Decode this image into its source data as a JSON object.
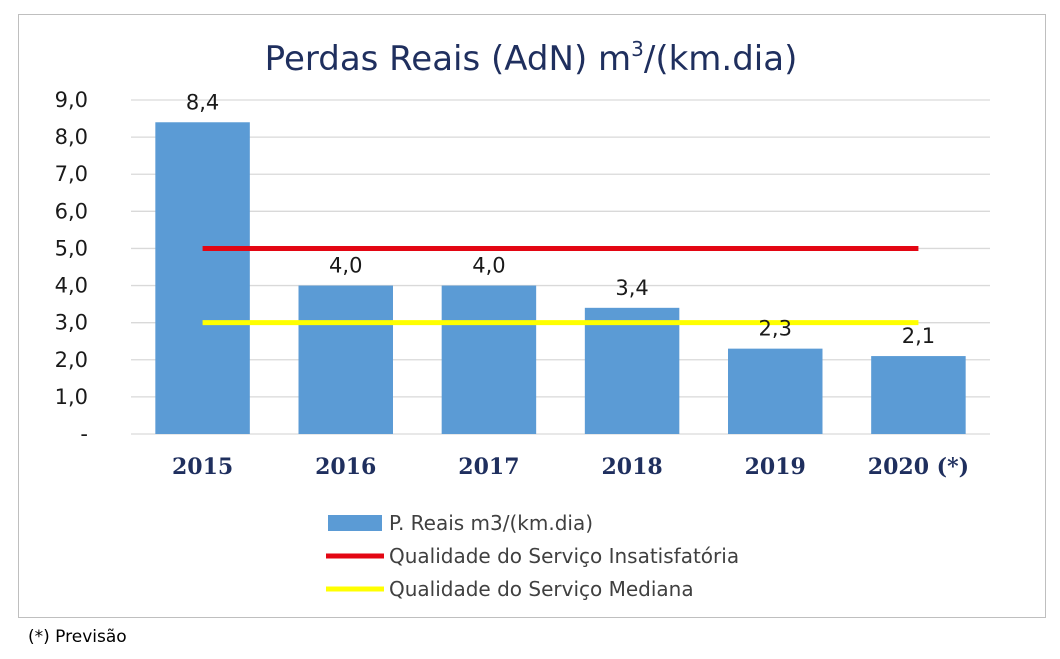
{
  "footnote": "(*) Previsão",
  "chart_data": {
    "type": "bar",
    "title": "Perdas Reais (AdN) m3/(km.dia)",
    "title_main": "Perdas Reais (AdN) m",
    "title_sup": "3",
    "title_rest": "/(km.dia)",
    "categories": [
      "2015",
      "2016",
      "2017",
      "2018",
      "2019",
      "2020 (*)"
    ],
    "series": [
      {
        "name": "P. Reais m3/(km.dia)",
        "type": "bar",
        "color": "#5b9bd5",
        "values": [
          8.4,
          4.0,
          4.0,
          3.4,
          2.3,
          2.1
        ],
        "labels": [
          "8,4",
          "4,0",
          "4,0",
          "3,4",
          "2,3",
          "2,1"
        ]
      },
      {
        "name": "Qualidade do Serviço Insatisfatória",
        "type": "line",
        "color": "#e30613",
        "values": [
          5.0,
          5.0,
          5.0,
          5.0,
          5.0,
          5.0
        ]
      },
      {
        "name": "Qualidade do Serviço Mediana",
        "type": "line",
        "color": "#ffff00",
        "values": [
          3.0,
          3.0,
          3.0,
          3.0,
          3.0,
          3.0
        ]
      }
    ],
    "ylim": [
      0,
      9
    ],
    "yticks": [
      0,
      1,
      2,
      3,
      4,
      5,
      6,
      7,
      8,
      9
    ],
    "ytick_labels": [
      "-",
      "1,0",
      "2,0",
      "3,0",
      "4,0",
      "5,0",
      "6,0",
      "7,0",
      "8,0",
      "9,0"
    ],
    "xlabel": "",
    "ylabel": "",
    "grid": true,
    "legend_position": "bottom"
  }
}
